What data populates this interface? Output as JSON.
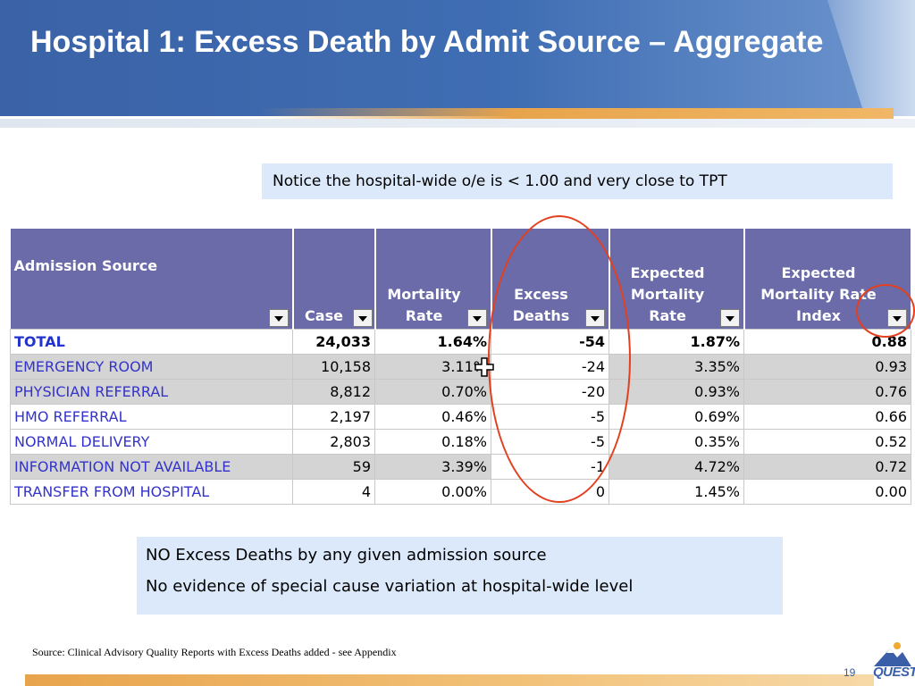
{
  "slide": {
    "title": "Hospital 1: Excess Death by Admit Source – Aggregate",
    "page_number": "19",
    "logo_text": "QUEST",
    "source_note": "Source: Clinical Advisory Quality Reports with Excess Deaths added  - see Appendix"
  },
  "callouts": {
    "top": "Notice the hospital-wide o/e is < 1.00 and very close to TPT",
    "bottom_line1": "NO Excess Deaths by any given admission source",
    "bottom_line2": "No evidence of special cause variation at hospital-wide level"
  },
  "table": {
    "headers": {
      "source": "Admission Source",
      "cases": "Case",
      "mortality_rate": "Mortality Rate",
      "excess_deaths": "Excess Deaths",
      "expected_mortality_rate": "Expected Mortality Rate",
      "expected_mortality_rate_index": "Expected Mortality Rate Index"
    },
    "total": {
      "source": "TOTAL",
      "cases": "24,033",
      "mortality_rate": "1.64%",
      "excess_deaths": "-54",
      "expected_rate": "1.87%",
      "index": "0.88"
    },
    "rows": [
      {
        "source": "EMERGENCY ROOM",
        "cases": "10,158",
        "mortality_rate": "3.11%",
        "excess_deaths": "-24",
        "expected_rate": "3.35%",
        "index": "0.93"
      },
      {
        "source": "PHYSICIAN REFERRAL",
        "cases": "8,812",
        "mortality_rate": "0.70%",
        "excess_deaths": "-20",
        "expected_rate": "0.93%",
        "index": "0.76"
      },
      {
        "source": "HMO REFERRAL",
        "cases": "2,197",
        "mortality_rate": "0.46%",
        "excess_deaths": "-5",
        "expected_rate": "0.69%",
        "index": "0.66"
      },
      {
        "source": "NORMAL DELIVERY",
        "cases": "2,803",
        "mortality_rate": "0.18%",
        "excess_deaths": "-5",
        "expected_rate": "0.35%",
        "index": "0.52"
      },
      {
        "source": "INFORMATION NOT AVAILABLE",
        "cases": "59",
        "mortality_rate": "3.39%",
        "excess_deaths": "-1",
        "expected_rate": "4.72%",
        "index": "0.72"
      },
      {
        "source": "TRANSFER FROM HOSPITAL",
        "cases": "4",
        "mortality_rate": "0.00%",
        "excess_deaths": "0",
        "expected_rate": "1.45%",
        "index": "0.00"
      }
    ]
  },
  "colors": {
    "header_blue": "#3f6db3",
    "accent_orange": "#e8a44c",
    "table_header": "#6b6baa",
    "annotation_red": "#e2401e",
    "callout_bg": "#dbe9fa"
  }
}
